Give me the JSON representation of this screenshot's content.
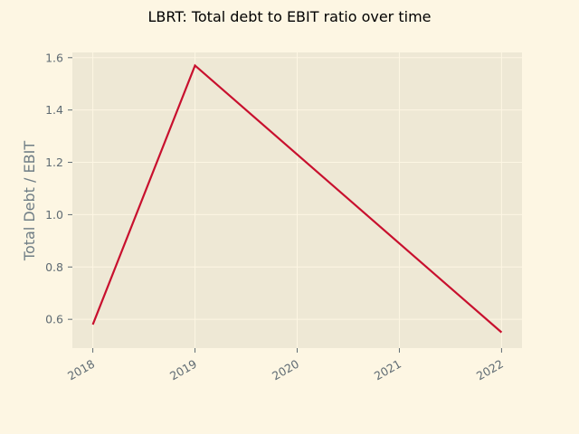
{
  "chart_data": {
    "type": "line",
    "title": "LBRT: Total debt to EBIT ratio over time",
    "xlabel": "",
    "ylabel": "Total Debt / EBIT",
    "x": [
      2018,
      2019,
      2022
    ],
    "series": [
      {
        "name": "",
        "values": [
          0.58,
          1.57,
          0.55
        ],
        "color": "#c8102e"
      }
    ],
    "xticks": [
      "2018",
      "2019",
      "2020",
      "2021",
      "2022"
    ],
    "yticks": [
      "0.6",
      "0.8",
      "1.0",
      "1.2",
      "1.4",
      "1.6"
    ],
    "xlim": [
      2017.8,
      2022.2
    ],
    "ylim": [
      0.49,
      1.62
    ],
    "grid": true,
    "colors": {
      "figure_bg": "#fdf6e3",
      "plot_bg": "#eee8d5",
      "grid": "#fdf6e3",
      "line": "#c8102e"
    }
  }
}
